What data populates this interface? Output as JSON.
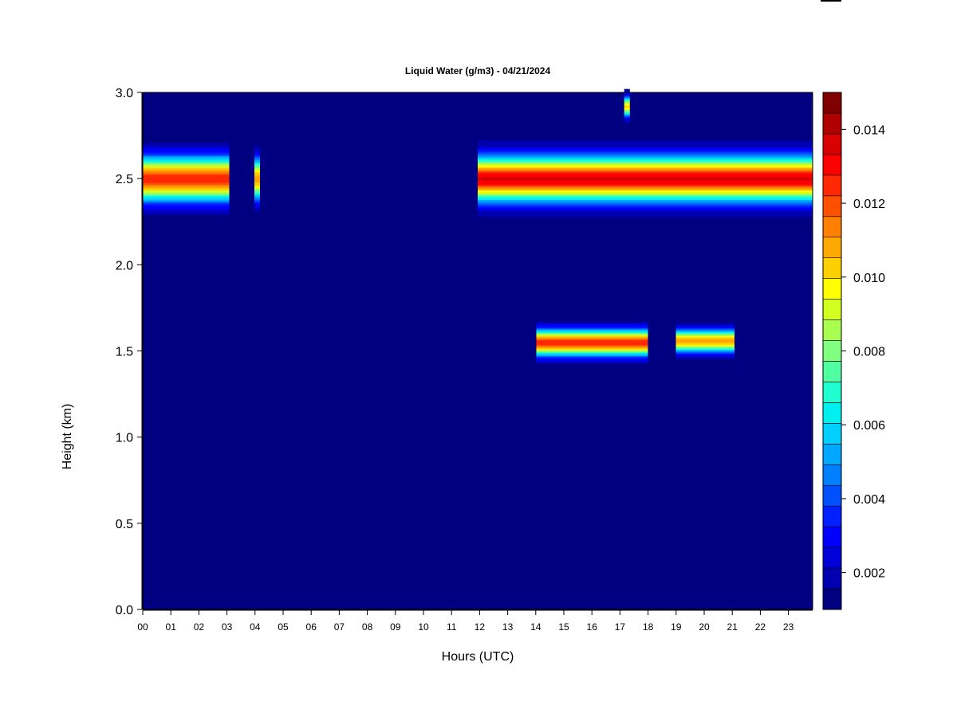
{
  "chart_data": {
    "type": "heatmap",
    "title": "Liquid Water (g/m3) - 04/21/2024",
    "xlabel": "Hours (UTC)",
    "ylabel": "Height (km)",
    "xlim": [
      0,
      24
    ],
    "ylim": [
      0.0,
      3.0
    ],
    "x_ticks": [
      "00",
      "01",
      "02",
      "03",
      "04",
      "05",
      "06",
      "07",
      "08",
      "09",
      "10",
      "11",
      "12",
      "13",
      "14",
      "15",
      "16",
      "17",
      "18",
      "19",
      "20",
      "21",
      "22",
      "23"
    ],
    "y_ticks": [
      "0.0",
      "0.5",
      "1.0",
      "1.5",
      "2.0",
      "2.5",
      "3.0"
    ],
    "colorbar": {
      "range": [
        0.001,
        0.015
      ],
      "ticks": [
        "0.002",
        "0.004",
        "0.006",
        "0.008",
        "0.010",
        "0.012",
        "0.014"
      ],
      "colors": [
        "#000080",
        "#0000b0",
        "#0000d8",
        "#0000ff",
        "#0020ff",
        "#0050ff",
        "#0080ff",
        "#00a8ff",
        "#00d0ff",
        "#00f0f0",
        "#20ffd0",
        "#50ffa0",
        "#80ff80",
        "#a8ff50",
        "#d0ff20",
        "#ffff00",
        "#ffd000",
        "#ffa800",
        "#ff8000",
        "#ff5000",
        "#ff2800",
        "#ff0000",
        "#d80000",
        "#b00000",
        "#800000"
      ]
    },
    "background_value": 0.001,
    "layers": [
      {
        "x_start": 0.0,
        "x_end": 3.1,
        "center_km": 2.5,
        "half_width_km": 0.22,
        "peak": 0.0125
      },
      {
        "x_start": 4.0,
        "x_end": 4.2,
        "center_km": 2.5,
        "half_width_km": 0.2,
        "peak": 0.011
      },
      {
        "x_start": 12.0,
        "x_end": 24.0,
        "center_km": 2.5,
        "half_width_km": 0.22,
        "peak": 0.0135
      },
      {
        "x_start": 14.1,
        "x_end": 18.1,
        "center_km": 1.55,
        "half_width_km": 0.13,
        "peak": 0.0125
      },
      {
        "x_start": 19.1,
        "x_end": 21.2,
        "center_km": 1.56,
        "half_width_km": 0.11,
        "peak": 0.011
      },
      {
        "x_start": 17.25,
        "x_end": 17.45,
        "center_km": 2.92,
        "half_width_km": 0.1,
        "peak": 0.01
      }
    ],
    "gaps": [
      {
        "x_start": 3.1,
        "x_end": 4.0,
        "y_min": 2.2,
        "y_max": 2.8
      },
      {
        "x_start": 21.2,
        "x_end": 24.0,
        "y_min": 1.3,
        "y_max": 1.8
      },
      {
        "x_start": 18.1,
        "x_end": 19.1,
        "y_min": 1.3,
        "y_max": 1.8
      }
    ]
  }
}
